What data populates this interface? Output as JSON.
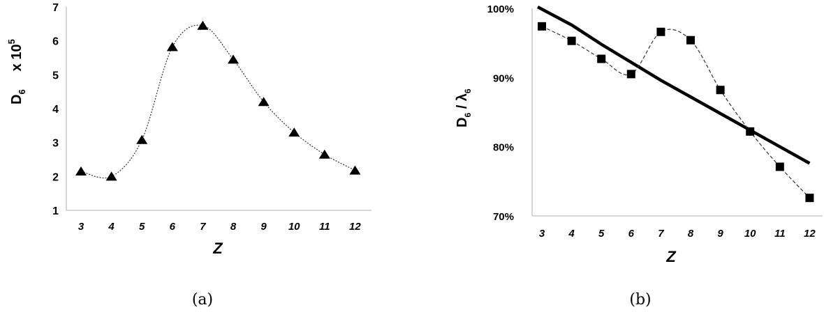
{
  "chart_data": [
    {
      "type": "line",
      "caption": "(a)",
      "xlabel": "Z",
      "ylabel": "D",
      "ylabel_sub": "6",
      "ylabel_scale": "x 10",
      "ylabel_scale_exp": "5",
      "categories": [
        "3",
        "4",
        "5",
        "6",
        "7",
        "8",
        "9",
        "10",
        "11",
        "12"
      ],
      "ylim": [
        1,
        7
      ],
      "yticks": [
        "1",
        "2",
        "3",
        "4",
        "5",
        "6",
        "7"
      ],
      "series": [
        {
          "values": [
            2.15,
            2.0,
            3.08,
            5.82,
            6.45,
            5.45,
            4.2,
            3.3,
            2.65,
            2.18
          ]
        }
      ]
    },
    {
      "type": "line",
      "caption": "(b)",
      "xlabel": "Z",
      "ylabel": "D",
      "ylabel_sub": "6",
      "ylabel_mid": " / λ",
      "ylabel_sub2": "6",
      "categories": [
        "3",
        "4",
        "5",
        "6",
        "7",
        "8",
        "9",
        "10",
        "11",
        "12"
      ],
      "ylim": [
        70,
        100
      ],
      "yticks": [
        "70%",
        "80%",
        "90%",
        "100%"
      ],
      "series": [
        {
          "values": [
            97.4,
            95.3,
            92.7,
            90.5,
            96.6,
            95.4,
            88.2,
            82.2,
            77.1,
            72.6
          ]
        },
        {
          "values": [
            100.4,
            97.6,
            94.8,
            92.2,
            89.6,
            87.2,
            84.8,
            82.4,
            80.0,
            77.6
          ]
        }
      ]
    }
  ]
}
